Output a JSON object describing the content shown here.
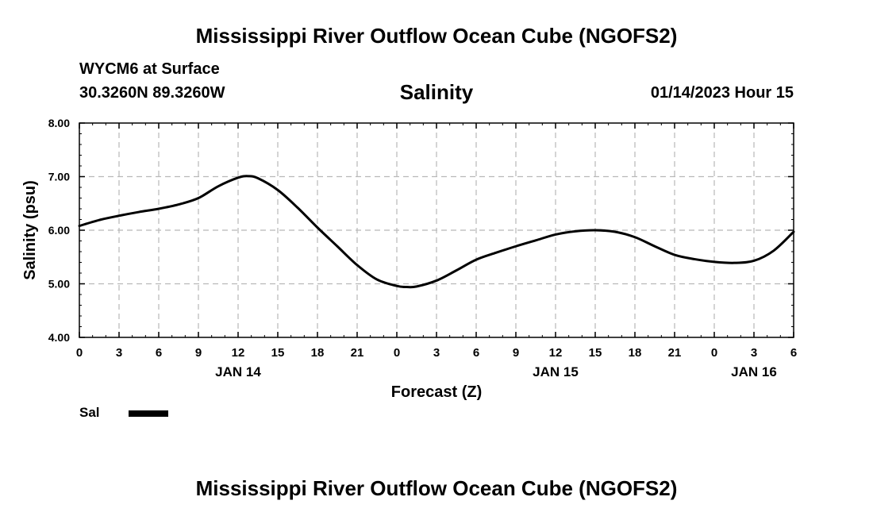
{
  "header": {
    "main_title": "Mississippi River Outflow Ocean Cube (NGOFS2)",
    "station": "WYCM6 at Surface",
    "coords": "30.3260N  89.3260W",
    "date": "01/14/2023 Hour 15"
  },
  "footer": {
    "title_repeat": "Mississippi River Outflow Ocean Cube (NGOFS2)"
  },
  "chart_data": {
    "type": "line",
    "title": "Salinity",
    "xlabel": "Forecast (Z)",
    "ylabel": "Salinity (psu)",
    "xlim": [
      0,
      54
    ],
    "ylim": [
      4.0,
      8.0
    ],
    "grid": true,
    "x_tick_values": [
      0,
      3,
      6,
      9,
      12,
      15,
      18,
      21,
      24,
      27,
      30,
      33,
      36,
      39,
      42,
      45,
      48,
      51,
      54
    ],
    "x_tick_labels": [
      "0",
      "3",
      "6",
      "9",
      "12",
      "15",
      "18",
      "21",
      "0",
      "3",
      "6",
      "9",
      "12",
      "15",
      "18",
      "21",
      "0",
      "3",
      "6"
    ],
    "y_tick_values": [
      4.0,
      5.0,
      6.0,
      7.0,
      8.0
    ],
    "y_tick_labels": [
      "4.00",
      "5.00",
      "6.00",
      "7.00",
      "8.00"
    ],
    "date_labels": [
      {
        "x": 12,
        "label": "JAN 14"
      },
      {
        "x": 36,
        "label": "JAN 15"
      },
      {
        "x": 51,
        "label": "JAN 16"
      }
    ],
    "series": [
      {
        "name": "Sal",
        "x": [
          0,
          1.5,
          3,
          4.5,
          6,
          7.5,
          9,
          10.5,
          12,
          12.75,
          13.5,
          15,
          16.5,
          18,
          19.5,
          21,
          22.5,
          24,
          24.75,
          25.5,
          27,
          28.5,
          30,
          31.5,
          33,
          34.5,
          36,
          37.5,
          39,
          40.5,
          42,
          43.5,
          45,
          46.5,
          48,
          49.5,
          51,
          52.5,
          54
        ],
        "values": [
          6.08,
          6.19,
          6.27,
          6.34,
          6.4,
          6.48,
          6.6,
          6.82,
          6.98,
          7.01,
          6.97,
          6.75,
          6.42,
          6.05,
          5.7,
          5.35,
          5.08,
          4.96,
          4.94,
          4.95,
          5.06,
          5.25,
          5.45,
          5.58,
          5.7,
          5.81,
          5.92,
          5.98,
          6.0,
          5.97,
          5.87,
          5.7,
          5.54,
          5.46,
          5.41,
          5.39,
          5.43,
          5.62,
          5.97
        ]
      }
    ],
    "legend": {
      "position": "bottom-left",
      "label": "Sal"
    }
  }
}
